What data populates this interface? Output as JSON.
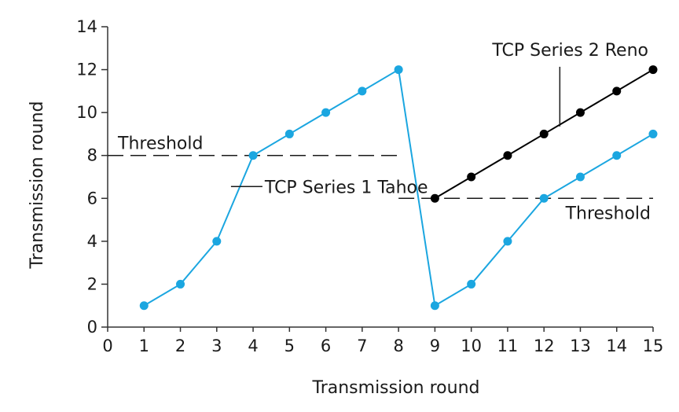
{
  "chart_data": {
    "type": "line",
    "xlabel": "Transmission round",
    "ylabel": "Transmission round",
    "xlim": [
      0,
      15
    ],
    "ylim": [
      0,
      14
    ],
    "x_ticks": [
      0,
      1,
      2,
      3,
      4,
      5,
      6,
      7,
      8,
      9,
      10,
      11,
      12,
      13,
      14,
      15
    ],
    "y_ticks": [
      0,
      2,
      4,
      6,
      8,
      10,
      12,
      14
    ],
    "grid": false,
    "legend": "none",
    "series": [
      {
        "name": "TCP Series 1 Tahoe",
        "color": "#1ba6e0",
        "x": [
          1,
          2,
          3,
          4,
          5,
          6,
          7,
          8,
          9,
          10,
          11,
          12,
          13,
          14,
          15
        ],
        "y": [
          1,
          2,
          4,
          8,
          9,
          10,
          11,
          12,
          1,
          2,
          4,
          6,
          7,
          8,
          9
        ]
      },
      {
        "name": "TCP Series 2 Reno",
        "color": "#000000",
        "x": [
          9,
          10,
          11,
          12,
          13,
          14,
          15
        ],
        "y": [
          6,
          7,
          8,
          9,
          10,
          11,
          12
        ]
      }
    ],
    "thresholds": [
      {
        "label": "Threshold",
        "y": 8,
        "x_range": [
          0,
          8
        ]
      },
      {
        "label": "Threshold",
        "y": 6,
        "x_range": [
          8,
          15
        ]
      }
    ],
    "annotations": [
      {
        "text": "TCP Series 1 Tahoe",
        "series": 0,
        "at_x": 3.5,
        "at_y": 6
      },
      {
        "text": "TCP Series 2 Reno",
        "series": 1,
        "at_x": 12.5,
        "at_y": 9.5
      }
    ]
  }
}
